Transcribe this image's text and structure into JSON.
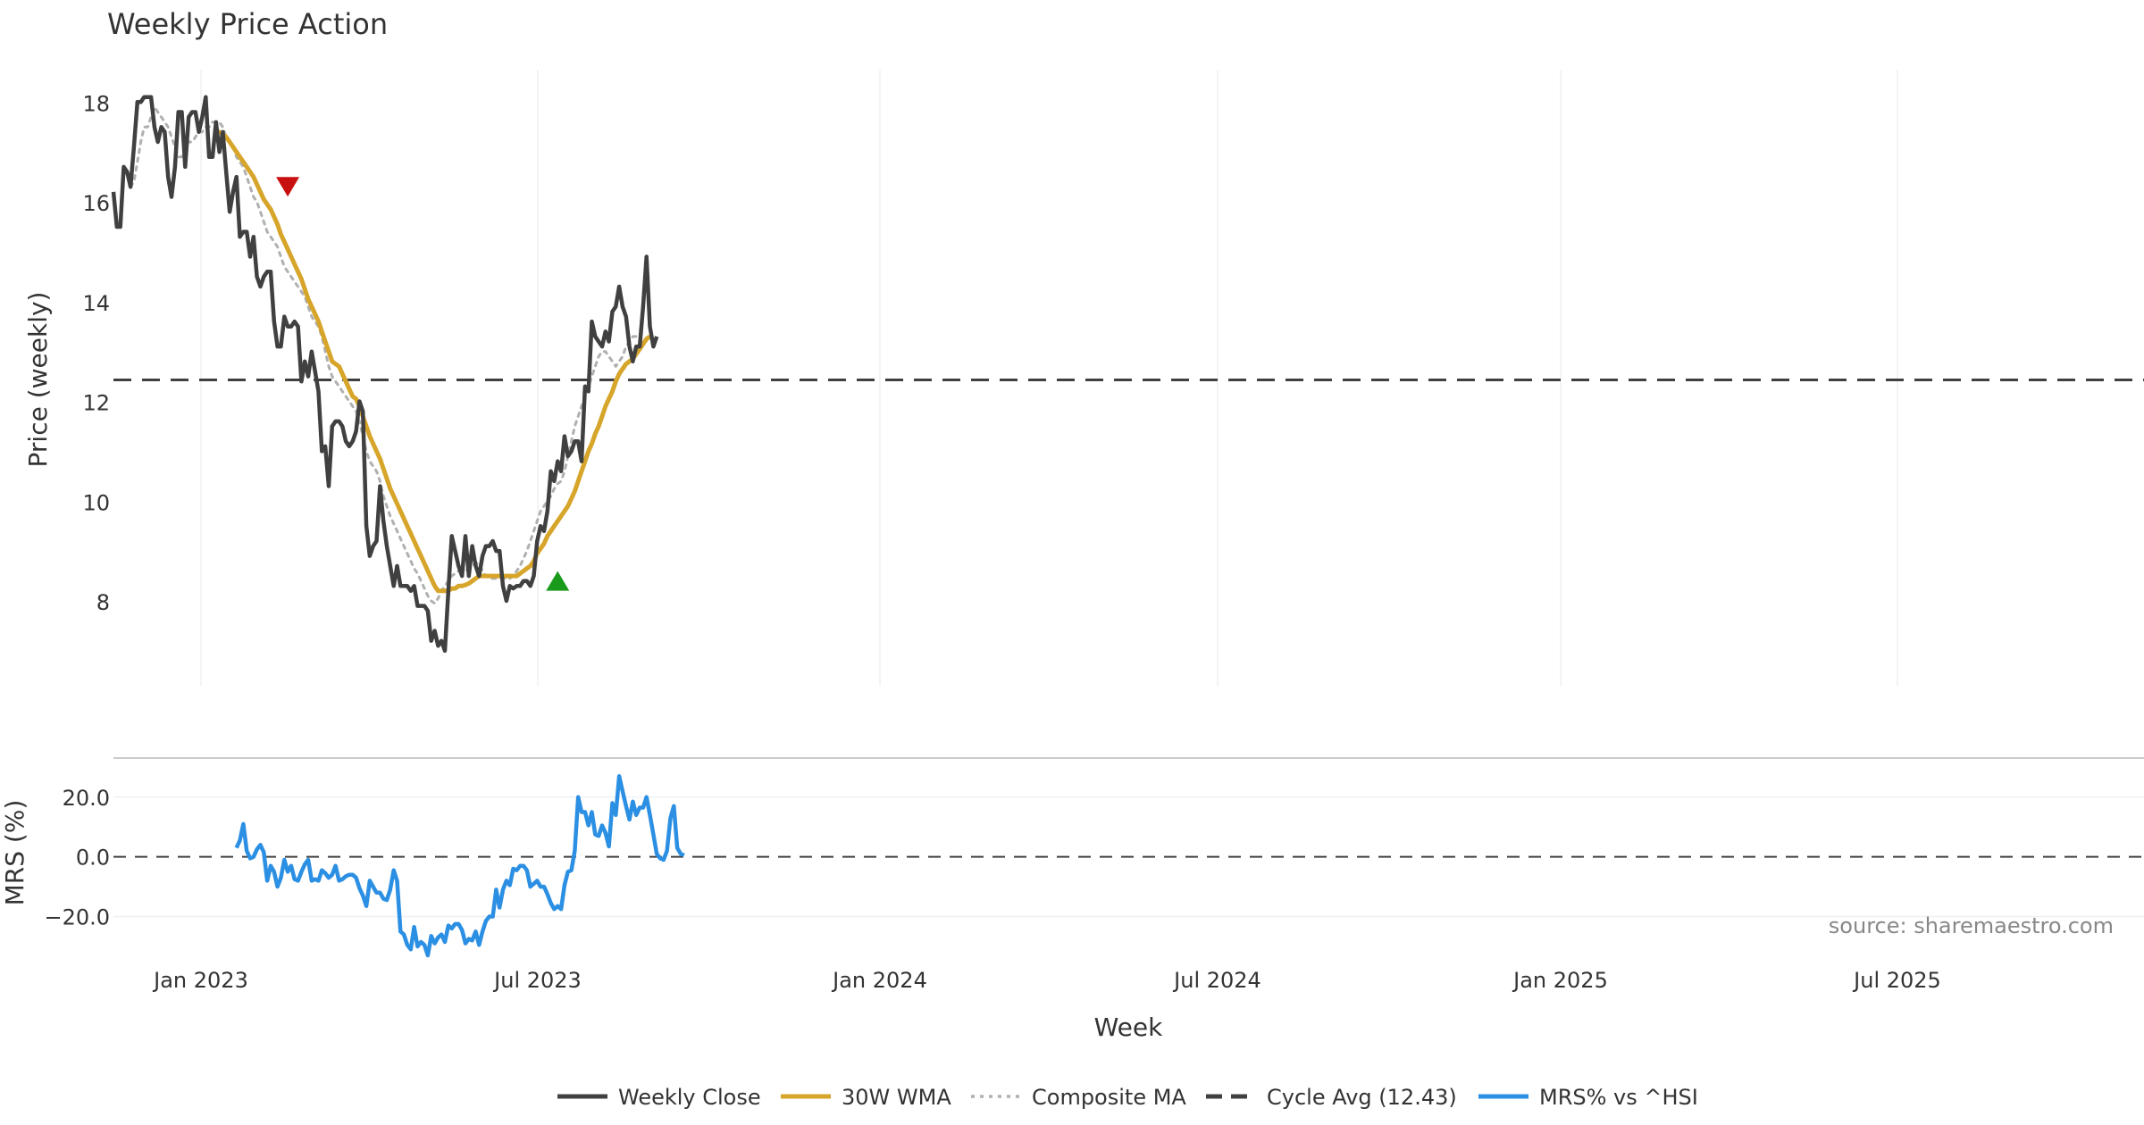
{
  "chart_data": {
    "type": "line",
    "title": "Weekly Price Action",
    "xlabel": "Week",
    "source_note": "source: sharemaestro.com",
    "x_tick_labels": [
      "Jan 2023",
      "Jul 2023",
      "Jan 2024",
      "Jul 2024",
      "Jan 2025",
      "Jul 2025"
    ],
    "price_panel": {
      "ylabel": "Price (weekly)",
      "ylim": [
        6.3,
        18.65
      ],
      "y_ticks": [
        8,
        10,
        12,
        14,
        16,
        18
      ],
      "grid": true,
      "cycle_avg": 12.43,
      "sell_signal": {
        "x": 51,
        "y": 16.3,
        "marker": "down-triangle",
        "color": "#c81010"
      },
      "buy_signal": {
        "x": 130,
        "y": 8.4,
        "marker": "up-triangle",
        "color": "#1a9a1a"
      },
      "series": [
        {
          "name": "Weekly Close",
          "color": "#404040",
          "style": "solid",
          "start": 0,
          "values": [
            16.2,
            15.5,
            15.5,
            16.7,
            16.6,
            16.3,
            17.1,
            18.0,
            18.0,
            18.1,
            18.1,
            18.1,
            17.5,
            17.2,
            17.5,
            17.4,
            16.5,
            16.1,
            16.7,
            17.8,
            17.8,
            16.7,
            17.7,
            17.8,
            17.8,
            17.4,
            17.7,
            18.1,
            16.9,
            16.9,
            17.6,
            17.0,
            17.4,
            16.6,
            15.8,
            16.2,
            16.5,
            15.3,
            15.4,
            15.4,
            14.9,
            15.3,
            14.5,
            14.3,
            14.5,
            14.6,
            14.6,
            13.6,
            13.1,
            13.1,
            13.7,
            13.5,
            13.5,
            13.6,
            13.5,
            12.4,
            12.8,
            12.5,
            13.0,
            12.6,
            12.2,
            11.0,
            11.1,
            10.3,
            11.5,
            11.6,
            11.6,
            11.5,
            11.2,
            11.1,
            11.2,
            11.4,
            12.0,
            11.8,
            9.5,
            8.9,
            9.1,
            9.2,
            10.3,
            9.6,
            9.1,
            8.7,
            8.3,
            8.7,
            8.3,
            8.3,
            8.3,
            8.2,
            8.3,
            7.9,
            7.9,
            7.9,
            7.8,
            7.2,
            7.4,
            7.1,
            7.2,
            7.0,
            8.2,
            9.3,
            9.0,
            8.7,
            8.5,
            9.3,
            8.5,
            9.1,
            8.7,
            8.5,
            8.9,
            9.1,
            9.1,
            9.2,
            9.0,
            9.0,
            8.3,
            8.0,
            8.3,
            8.25,
            8.3,
            8.3,
            8.4,
            8.4,
            8.3,
            8.5,
            9.2,
            9.5,
            9.4,
            9.8,
            10.6,
            10.4,
            10.8,
            10.6,
            11.3,
            10.9,
            11.0,
            11.2,
            11.2,
            10.8,
            12.3,
            12.2,
            13.6,
            13.3,
            13.2,
            13.1,
            13.4,
            13.2,
            13.8,
            13.9,
            14.3,
            13.9,
            13.7,
            13.1,
            12.8,
            13.1,
            13.1,
            13.9,
            14.9,
            13.5,
            13.1,
            13.3
          ]
        },
        {
          "name": "30W WMA",
          "color": "#d6a52a",
          "style": "solid",
          "start": 30,
          "values": [
            17.4,
            17.4,
            17.35,
            17.3,
            17.2,
            17.1,
            17.0,
            16.9,
            16.8,
            16.7,
            16.6,
            16.5,
            16.35,
            16.2,
            16.05,
            15.95,
            15.85,
            15.7,
            15.55,
            15.35,
            15.2,
            15.05,
            14.9,
            14.75,
            14.6,
            14.45,
            14.25,
            14.05,
            13.9,
            13.75,
            13.6,
            13.4,
            13.2,
            13.0,
            12.8,
            12.75,
            12.7,
            12.55,
            12.4,
            12.25,
            12.1,
            12.05,
            11.9,
            11.7,
            11.5,
            11.3,
            11.15,
            11.0,
            10.85,
            10.65,
            10.45,
            10.25,
            10.1,
            9.95,
            9.8,
            9.65,
            9.5,
            9.35,
            9.2,
            9.05,
            8.9,
            8.75,
            8.6,
            8.45,
            8.3,
            8.2,
            8.2,
            8.2,
            8.2,
            8.25,
            8.25,
            8.3,
            8.3,
            8.32,
            8.35,
            8.4,
            8.45,
            8.5,
            8.5,
            8.5,
            8.5,
            8.5,
            8.5,
            8.5,
            8.5,
            8.5,
            8.5,
            8.5,
            8.5,
            8.55,
            8.6,
            8.65,
            8.7,
            8.8,
            8.95,
            9.05,
            9.15,
            9.3,
            9.4,
            9.5,
            9.6,
            9.7,
            9.8,
            9.9,
            10.05,
            10.2,
            10.4,
            10.6,
            10.8,
            11.0,
            11.15,
            11.35,
            11.5,
            11.7,
            11.9,
            12.05,
            12.2,
            12.4,
            12.55,
            12.65,
            12.75,
            12.8,
            12.85,
            12.95,
            13.05,
            13.15,
            13.25,
            13.3
          ]
        },
        {
          "name": "Composite MA",
          "color": "#b0b0b0",
          "style": "dotted",
          "start": 5,
          "values": [
            16.3,
            16.4,
            16.8,
            17.2,
            17.5,
            17.5,
            17.7,
            17.9,
            17.8,
            17.7,
            17.6,
            17.5,
            17.3,
            17.1,
            16.9,
            16.9,
            17.1,
            17.2,
            17.2,
            17.3,
            17.4,
            17.4,
            17.5,
            17.5,
            17.6,
            17.6,
            17.6,
            17.5,
            17.3,
            17.2,
            17.1,
            16.9,
            16.8,
            16.7,
            16.5,
            16.3,
            16.1,
            16.0,
            15.8,
            15.6,
            15.4,
            15.3,
            15.2,
            15.1,
            14.9,
            14.7,
            14.6,
            14.5,
            14.4,
            14.3,
            14.2,
            14.1,
            13.9,
            13.7,
            13.6,
            13.5,
            13.3,
            13.0,
            12.7,
            12.5,
            12.4,
            12.3,
            12.2,
            12.1,
            12.0,
            11.9,
            11.8,
            11.6,
            11.3,
            11.0,
            10.8,
            10.7,
            10.6,
            10.4,
            10.1,
            9.9,
            9.7,
            9.55,
            9.4,
            9.25,
            9.1,
            8.95,
            8.8,
            8.65,
            8.55,
            8.4,
            8.25,
            8.1,
            8.0,
            7.95,
            8.05,
            8.2,
            8.3,
            8.4,
            8.5,
            8.55,
            8.6,
            8.6,
            8.6,
            8.65,
            8.7,
            8.75,
            8.75,
            8.6,
            8.5,
            8.45,
            8.45,
            8.45,
            8.45,
            8.45,
            8.45,
            8.45,
            8.5,
            8.6,
            8.7,
            8.85,
            9.0,
            9.2,
            9.4,
            9.6,
            9.8,
            9.9,
            10.0,
            10.1,
            10.25,
            10.35,
            10.4,
            10.6,
            10.9,
            11.2,
            11.5,
            11.7,
            11.9,
            12.1,
            12.3,
            12.5,
            12.7,
            12.9,
            13.0,
            13.0,
            12.9,
            12.8,
            12.7,
            12.8,
            12.9,
            13.1,
            13.2,
            13.3,
            13.3
          ]
        }
      ]
    },
    "mrs_panel": {
      "ylabel": "MRS (%)",
      "ylim": [
        -33,
        31
      ],
      "y_ticks": [
        20,
        0,
        -20
      ],
      "y_tick_labels": [
        "20.0",
        "0.0",
        "−20.0"
      ],
      "zero_line": 0,
      "series": [
        {
          "name": "MRS% vs ^HSI",
          "color": "#2b8fe3",
          "style": "solid",
          "start": 36,
          "values": [
            3,
            5.5,
            11,
            2,
            -0.5,
            0,
            2.5,
            4,
            1.5,
            -8,
            -3,
            -5,
            -10,
            -7,
            -1,
            -5,
            -3,
            -7.5,
            -8,
            -5,
            -2.5,
            -1,
            -8,
            -7.5,
            -8,
            -4.5,
            -5.5,
            -7,
            -6,
            -3,
            -8,
            -7.5,
            -6.5,
            -6,
            -6,
            -7,
            -10.5,
            -13,
            -16.5,
            -8,
            -10,
            -12,
            -12,
            -14,
            -14.5,
            -11,
            -4.5,
            -8,
            -25,
            -26,
            -29.5,
            -31,
            -23.5,
            -30,
            -28.5,
            -29.5,
            -33,
            -26.5,
            -29,
            -27,
            -26,
            -28.5,
            -23,
            -24,
            -22.5,
            -22.5,
            -24.5,
            -29,
            -27.5,
            -28,
            -25,
            -29.5,
            -25,
            -21.5,
            -20,
            -20,
            -11,
            -17,
            -11,
            -8,
            -9.5,
            -4,
            -4.5,
            -3,
            -3,
            -4.5,
            -10,
            -9,
            -8,
            -10,
            -10,
            -12.5,
            -15.5,
            -17.5,
            -16.5,
            -17.5,
            -9.5,
            -5,
            -4.5,
            2,
            20,
            15,
            15,
            10.5,
            15,
            7.5,
            7,
            10.5,
            8,
            3.5,
            18,
            14,
            27,
            22,
            17,
            12.5,
            18.5,
            14,
            16.5,
            16.5,
            20,
            14,
            7.5,
            1,
            -0.5,
            -1,
            2,
            13,
            17,
            3,
            1,
            0.5
          ]
        }
      ]
    },
    "legend": {
      "position": "bottom-center",
      "entries": [
        {
          "label": "Weekly Close",
          "color": "#404040",
          "style": "solid"
        },
        {
          "label": "30W WMA",
          "color": "#d6a52a",
          "style": "solid"
        },
        {
          "label": "Composite MA",
          "color": "#b0b0b0",
          "style": "dotted"
        },
        {
          "label": "Cycle Avg (12.43)",
          "color": "#404040",
          "style": "dashed"
        },
        {
          "label": "MRS% vs ^HSI",
          "color": "#2b8fe3",
          "style": "solid"
        }
      ]
    }
  }
}
